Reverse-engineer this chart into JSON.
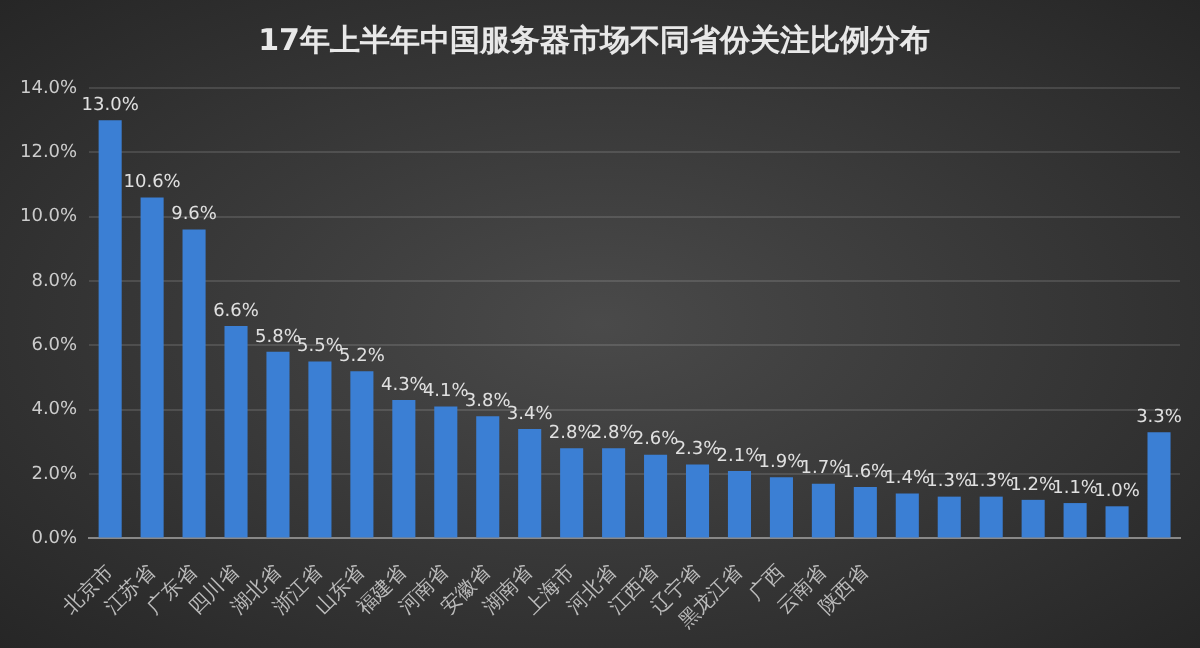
{
  "chart_data": {
    "type": "bar",
    "title": "17年上半年中国服务器市场不同省份关注比例分布",
    "categories": [
      "北京市",
      "江苏省",
      "广东省",
      "四川省",
      "湖北省",
      "浙江省",
      "山东省",
      "福建省",
      "河南省",
      "安徽省",
      "湖南省",
      "上海市",
      "河北省",
      "江西省",
      "辽宁省",
      "黑龙江省",
      "广西",
      "云南省",
      "陕西省",
      null,
      null,
      null,
      null,
      null,
      null,
      null
    ],
    "values": [
      13.0,
      10.6,
      9.6,
      6.6,
      5.8,
      5.5,
      5.2,
      4.3,
      4.1,
      3.8,
      3.4,
      2.8,
      2.8,
      2.6,
      2.3,
      2.1,
      1.9,
      1.7,
      1.6,
      1.4,
      1.3,
      1.3,
      1.2,
      1.1,
      1.0,
      3.3
    ],
    "value_labels": [
      "13.0%",
      "10.6%",
      "9.6%",
      "6.6%",
      "5.8%",
      "5.5%",
      "5.2%",
      "4.3%",
      "4.1%",
      "3.8%",
      "3.4%",
      "2.8%",
      "2.8%",
      "2.6%",
      "2.3%",
      "2.1%",
      "1.9%",
      "1.7%",
      "1.6%",
      "1.4%",
      "1.3%",
      "1.3%",
      "1.2%",
      "1.1%",
      "1.0%",
      "3.3%"
    ],
    "color": "#3b7fd4",
    "ylim": [
      0,
      14
    ],
    "yticks": [
      {
        "value": 0,
        "label": "0.0%"
      },
      {
        "value": 2,
        "label": "2.0%"
      },
      {
        "value": 4,
        "label": "4.0%"
      },
      {
        "value": 6,
        "label": "6.0%"
      },
      {
        "value": 8,
        "label": "8.0%"
      },
      {
        "value": 10,
        "label": "10.0%"
      },
      {
        "value": 12,
        "label": "12.0%"
      },
      {
        "value": 14,
        "label": "14.0%"
      }
    ],
    "grid": "y"
  }
}
